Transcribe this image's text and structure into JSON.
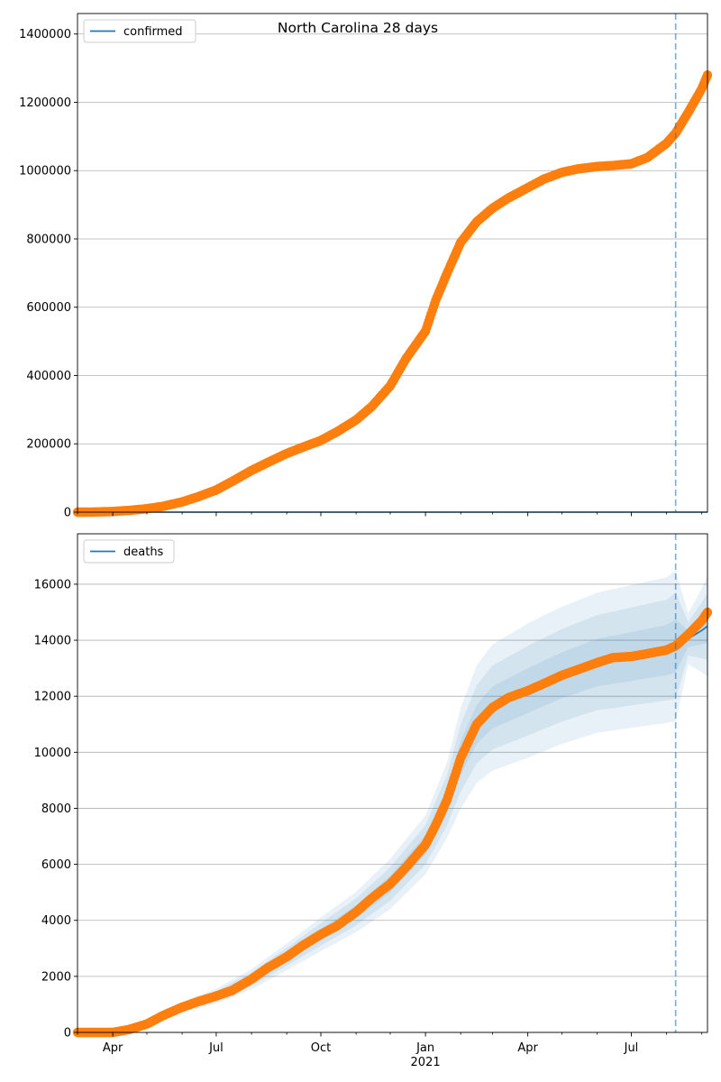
{
  "chart_data": [
    {
      "type": "scatter",
      "title": "North Carolina 28 days",
      "legend": {
        "entries": [
          "confirmed"
        ],
        "placement": "top-left"
      },
      "grid": "y",
      "x_tick_labels": [
        "Apr",
        "Jul",
        "Oct",
        "Jan",
        "Apr",
        "Jul"
      ],
      "x_year_label": "",
      "xlim": [
        "2020-03-01",
        "2021-09-06"
      ],
      "ylim": [
        0,
        1460000
      ],
      "y_ticks": [
        0,
        200000,
        400000,
        600000,
        800000,
        1000000,
        1200000,
        1400000
      ],
      "forecast_start": "2021-08-09",
      "observed": {
        "name": "",
        "color": "#ff7f0e",
        "x": [
          "2020-03-01",
          "2020-03-15",
          "2020-04-01",
          "2020-04-15",
          "2020-05-01",
          "2020-05-15",
          "2020-06-01",
          "2020-06-15",
          "2020-07-01",
          "2020-07-15",
          "2020-08-01",
          "2020-08-15",
          "2020-09-01",
          "2020-09-15",
          "2020-10-01",
          "2020-10-15",
          "2020-11-01",
          "2020-11-15",
          "2020-12-01",
          "2020-12-15",
          "2021-01-01",
          "2021-01-10",
          "2021-01-20",
          "2021-02-01",
          "2021-02-15",
          "2021-03-01",
          "2021-03-15",
          "2021-04-01",
          "2021-04-15",
          "2021-05-01",
          "2021-05-15",
          "2021-06-01",
          "2021-06-15",
          "2021-07-01",
          "2021-07-15",
          "2021-08-01",
          "2021-08-09",
          "2021-08-20",
          "2021-09-01",
          "2021-09-06"
        ],
        "y": [
          0,
          300,
          2000,
          5000,
          10000,
          17000,
          30000,
          45000,
          65000,
          90000,
          122000,
          145000,
          172000,
          190000,
          210000,
          235000,
          270000,
          310000,
          370000,
          450000,
          530000,
          620000,
          700000,
          790000,
          850000,
          890000,
          920000,
          950000,
          975000,
          995000,
          1005000,
          1012000,
          1015000,
          1020000,
          1038000,
          1080000,
          1110000,
          1170000,
          1240000,
          1280000
        ]
      },
      "series": [
        {
          "name": "confirmed",
          "color": "#1f77b4",
          "x": [
            "2020-03-01",
            "2021-09-06"
          ],
          "y": [
            0,
            0
          ]
        }
      ]
    },
    {
      "type": "line",
      "title": "",
      "legend": {
        "entries": [
          "deaths"
        ],
        "placement": "top-left"
      },
      "grid": "y",
      "x_tick_labels": [
        "Apr",
        "Jul",
        "Oct",
        "Jan",
        "Apr",
        "Jul"
      ],
      "x_year_label": "2021",
      "xlim": [
        "2020-03-01",
        "2021-09-06"
      ],
      "ylim": [
        0,
        17800
      ],
      "y_ticks": [
        0,
        2000,
        4000,
        6000,
        8000,
        10000,
        12000,
        14000,
        16000
      ],
      "forecast_start": "2021-08-09",
      "observed": {
        "name": "",
        "color": "#ff7f0e",
        "x": [
          "2020-03-01",
          "2020-04-01",
          "2020-04-15",
          "2020-05-01",
          "2020-05-15",
          "2020-06-01",
          "2020-06-15",
          "2020-07-01",
          "2020-07-15",
          "2020-08-01",
          "2020-08-15",
          "2020-09-01",
          "2020-09-15",
          "2020-10-01",
          "2020-10-15",
          "2020-11-01",
          "2020-11-15",
          "2020-12-01",
          "2020-12-15",
          "2021-01-01",
          "2021-01-10",
          "2021-01-20",
          "2021-02-01",
          "2021-02-15",
          "2021-03-01",
          "2021-03-15",
          "2021-04-01",
          "2021-04-15",
          "2021-05-01",
          "2021-05-15",
          "2021-06-01",
          "2021-06-15",
          "2021-07-01",
          "2021-07-15",
          "2021-08-01",
          "2021-08-09",
          "2021-08-20",
          "2021-09-01",
          "2021-09-06"
        ],
        "y": [
          0,
          0,
          100,
          300,
          600,
          900,
          1100,
          1300,
          1500,
          1900,
          2300,
          2700,
          3100,
          3500,
          3800,
          4300,
          4800,
          5300,
          5900,
          6700,
          7400,
          8300,
          9800,
          11000,
          11600,
          11950,
          12200,
          12450,
          12750,
          12950,
          13200,
          13380,
          13420,
          13520,
          13650,
          13800,
          14200,
          14700,
          15000
        ]
      },
      "series": [
        {
          "name": "deaths",
          "color": "#1f77b4",
          "x": [
            "2020-03-01",
            "2020-04-01",
            "2020-04-15",
            "2020-05-01",
            "2020-05-15",
            "2020-06-01",
            "2020-06-15",
            "2020-07-01",
            "2020-07-15",
            "2020-08-01",
            "2020-08-15",
            "2020-09-01",
            "2020-09-15",
            "2020-10-01",
            "2020-10-15",
            "2020-11-01",
            "2020-11-15",
            "2020-12-01",
            "2020-12-15",
            "2021-01-01",
            "2021-01-10",
            "2021-01-20",
            "2021-02-01",
            "2021-02-15",
            "2021-03-01",
            "2021-03-15",
            "2021-04-01",
            "2021-04-15",
            "2021-05-01",
            "2021-05-15",
            "2021-06-01",
            "2021-06-15",
            "2021-07-01",
            "2021-07-15",
            "2021-08-01",
            "2021-08-09",
            "2021-08-20",
            "2021-09-01",
            "2021-09-06"
          ],
          "y": [
            0,
            0,
            100,
            300,
            600,
            900,
            1100,
            1300,
            1500,
            1900,
            2300,
            2700,
            3100,
            3500,
            3800,
            4300,
            4800,
            5300,
            5900,
            6700,
            7400,
            8300,
            9800,
            11000,
            11600,
            11950,
            12200,
            12450,
            12750,
            12950,
            13200,
            13380,
            13420,
            13520,
            13650,
            13800,
            14050,
            14350,
            14500
          ]
        }
      ],
      "uncertainty_bands": {
        "color": "#1f77b4",
        "x": [
          "2020-05-01",
          "2020-06-01",
          "2020-07-01",
          "2020-08-01",
          "2020-09-01",
          "2020-10-01",
          "2020-11-01",
          "2020-12-01",
          "2021-01-01",
          "2021-01-20",
          "2021-02-01",
          "2021-02-15",
          "2021-03-01",
          "2021-04-01",
          "2021-05-01",
          "2021-06-01",
          "2021-07-01",
          "2021-08-01",
          "2021-08-09",
          "2021-08-20",
          "2021-09-01",
          "2021-09-06"
        ],
        "center": [
          300,
          900,
          1300,
          1900,
          2700,
          3500,
          4300,
          5300,
          6700,
          8300,
          9800,
          11000,
          11600,
          12200,
          12750,
          13200,
          13420,
          13650,
          13800,
          14050,
          14350,
          14500
        ],
        "half_widths": [
          [
            20,
            60,
            80,
            120,
            160,
            200,
            240,
            300,
            350,
            450,
            600,
            700,
            750,
            800,
            820,
            850,
            870,
            900,
            950,
            300,
            500,
            600
          ],
          [
            40,
            120,
            170,
            240,
            320,
            400,
            480,
            600,
            700,
            900,
            1200,
            1400,
            1500,
            1600,
            1650,
            1700,
            1750,
            1800,
            1900,
            600,
            1000,
            1200
          ],
          [
            60,
            180,
            260,
            360,
            480,
            600,
            720,
            900,
            1050,
            1350,
            1800,
            2100,
            2250,
            2400,
            2450,
            2500,
            2550,
            2600,
            2700,
            900,
            1500,
            1800
          ]
        ]
      }
    }
  ]
}
